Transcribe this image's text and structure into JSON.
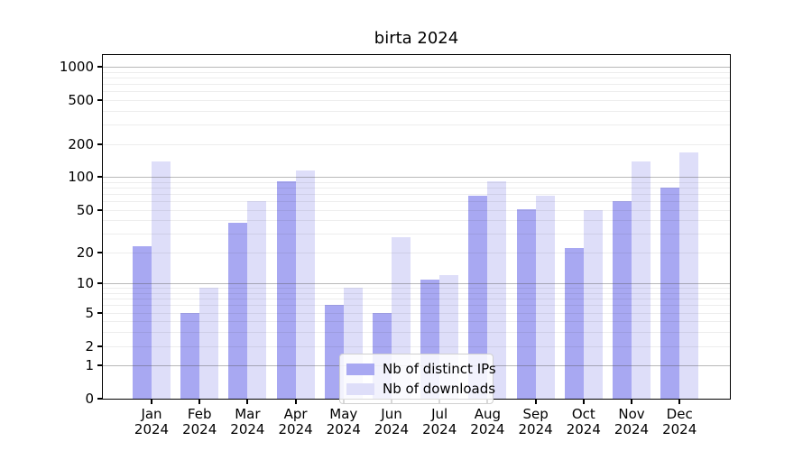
{
  "chart_data": {
    "type": "bar",
    "title": "birta 2024",
    "scale": "log10(1+x)",
    "grid": true,
    "legend_position": "lower-center",
    "x_year": "2024",
    "categories": [
      "Jan",
      "Feb",
      "Mar",
      "Apr",
      "May",
      "Jun",
      "Jul",
      "Aug",
      "Sep",
      "Oct",
      "Nov",
      "Dec"
    ],
    "y_ticks": [
      0,
      1,
      2,
      5,
      10,
      20,
      50,
      100,
      200,
      500,
      1000
    ],
    "y_max": 1280,
    "series": [
      {
        "name": "Nb of distinct IPs",
        "color": "#a8a8f2",
        "values": [
          23,
          5,
          38,
          92,
          6,
          5,
          11,
          68,
          51,
          22,
          60,
          80
        ]
      },
      {
        "name": "Nb of downloads",
        "color": "#dedef9",
        "values": [
          140,
          9,
          60,
          115,
          9,
          28,
          12,
          92,
          68,
          50,
          138,
          168
        ]
      }
    ]
  }
}
